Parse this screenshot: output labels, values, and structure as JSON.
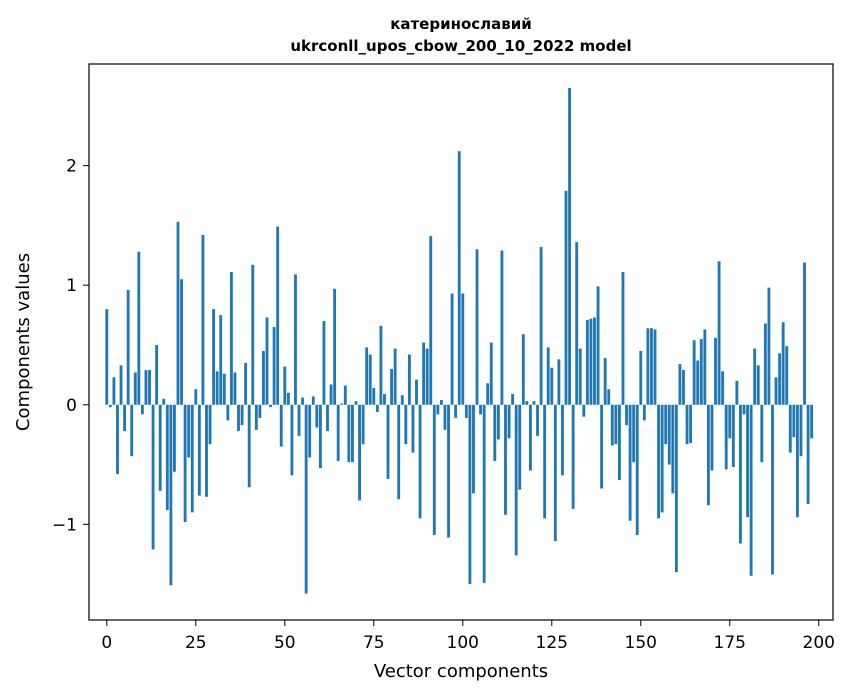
{
  "chart_data": {
    "type": "bar",
    "title": "катеринославий",
    "subtitle": "ukrconll_upos_cbow_200_10_2022 model",
    "xlabel": "Vector components",
    "ylabel": "Components values",
    "xlim": [
      -5,
      204
    ],
    "ylim": [
      -1.8,
      2.85
    ],
    "xticks": [
      0,
      25,
      50,
      75,
      100,
      125,
      150,
      175,
      200
    ],
    "xtick_labels": [
      "0",
      "25",
      "50",
      "75",
      "100",
      "125",
      "150",
      "175",
      "200"
    ],
    "yticks": [
      -1,
      0,
      1,
      2
    ],
    "ytick_labels": [
      "−1",
      "0",
      "1",
      "2"
    ],
    "grid": false,
    "bar_color": "#1f77b4",
    "values": [
      0.8,
      -0.02,
      0.23,
      -0.58,
      0.33,
      -0.22,
      0.96,
      -0.43,
      0.27,
      1.28,
      -0.08,
      0.29,
      0.29,
      -1.21,
      0.5,
      -0.72,
      0.05,
      -0.88,
      -1.51,
      -0.56,
      1.53,
      1.05,
      -0.98,
      -0.44,
      -0.9,
      0.13,
      -0.76,
      1.42,
      -0.77,
      -0.33,
      0.8,
      0.28,
      0.75,
      0.26,
      -0.13,
      1.11,
      0.27,
      -0.22,
      -0.17,
      0.35,
      -0.69,
      1.17,
      -0.21,
      -0.11,
      0.45,
      0.73,
      -0.02,
      0.65,
      1.49,
      -0.35,
      0.32,
      0.1,
      -0.59,
      1.09,
      -0.26,
      0.06,
      -1.58,
      -0.44,
      0.07,
      -0.19,
      -0.53,
      0.7,
      -0.22,
      0.17,
      0.97,
      -0.47,
      0.01,
      0.16,
      -0.48,
      -0.48,
      0.03,
      -0.8,
      -0.33,
      0.48,
      0.42,
      0.14,
      -0.06,
      0.66,
      0.09,
      -0.62,
      0.3,
      0.47,
      -0.79,
      0.08,
      -0.33,
      0.42,
      -0.4,
      0.21,
      -0.95,
      0.52,
      0.47,
      1.41,
      -1.09,
      -0.08,
      0.04,
      -0.21,
      -1.11,
      0.93,
      -0.11,
      2.12,
      0.93,
      -0.11,
      -1.5,
      -0.74,
      1.3,
      -0.08,
      -1.49,
      0.18,
      0.52,
      -0.47,
      -0.29,
      1.29,
      -0.92,
      -0.28,
      0.09,
      -1.26,
      -0.71,
      0.59,
      0.03,
      -0.55,
      0.03,
      -0.26,
      1.32,
      -0.95,
      0.48,
      0.31,
      -1.14,
      0.38,
      -0.59,
      1.79,
      2.65,
      -0.87,
      1.36,
      0.47,
      -0.1,
      0.71,
      0.72,
      0.73,
      0.99,
      -0.7,
      0.39,
      0.13,
      -0.34,
      -0.33,
      -0.63,
      1.11,
      -0.17,
      -0.97,
      -0.48,
      -1.09,
      0.45,
      -0.13,
      0.64,
      0.64,
      0.63,
      -0.95,
      -0.9,
      -0.33,
      -0.5,
      -0.74,
      -1.4,
      0.34,
      0.29,
      -0.33,
      -0.32,
      0.54,
      0.37,
      0.55,
      0.63,
      -0.84,
      -0.55,
      0.56,
      1.2,
      0.28,
      -0.54,
      -0.28,
      -0.52,
      0.2,
      -1.16,
      -0.08,
      -0.94,
      -1.43,
      0.47,
      0.33,
      -0.48,
      0.68,
      0.98,
      -1.42,
      0.23,
      0.43,
      0.69,
      0.49,
      -0.4,
      -0.27,
      -0.94,
      -0.43,
      1.19,
      -0.83,
      -0.28
    ]
  }
}
